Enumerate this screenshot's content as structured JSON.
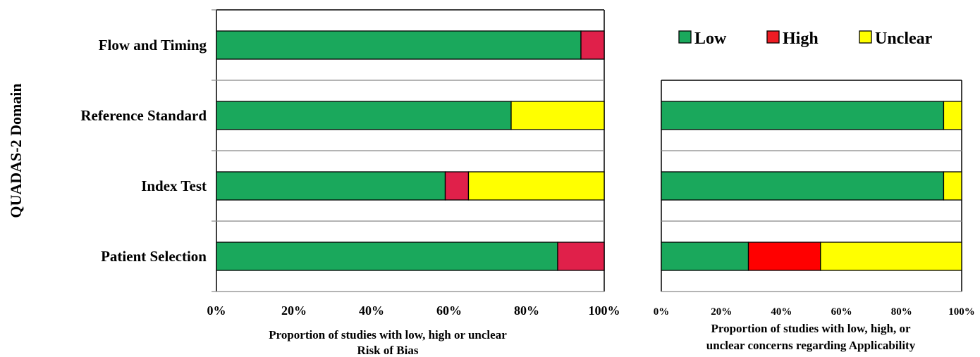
{
  "chart_data": [
    {
      "type": "bar",
      "stacked": true,
      "orientation": "horizontal",
      "categories": [
        "Patient Selection",
        "Index Test",
        "Reference Standard",
        "Flow and Timing"
      ],
      "series": [
        {
          "name": "Low",
          "values": [
            88,
            59,
            76,
            94
          ]
        },
        {
          "name": "High",
          "values": [
            12,
            6,
            0,
            6
          ]
        },
        {
          "name": "Unclear",
          "values": [
            0,
            35,
            24,
            0
          ]
        }
      ],
      "ylabel": "QUADAS-2 Domain",
      "xlabel_lines": [
        "Proportion of studies with low, high or unclear",
        "Risk of Bias"
      ],
      "xlim": [
        0,
        100
      ],
      "xticks": [
        "0%",
        "20%",
        "40%",
        "60%",
        "80%",
        "100%"
      ],
      "grid": "horizontal"
    },
    {
      "type": "bar",
      "stacked": true,
      "orientation": "horizontal",
      "categories": [
        "Patient Selection",
        "Index Test",
        "Reference Standard"
      ],
      "series": [
        {
          "name": "Low",
          "values": [
            29,
            94,
            94
          ]
        },
        {
          "name": "High",
          "values": [
            24,
            0,
            0
          ]
        },
        {
          "name": "Unclear",
          "values": [
            47,
            6,
            6
          ]
        }
      ],
      "xlabel_lines": [
        "Proportion of studies with low, high, or",
        "unclear concerns  regarding Applicability"
      ],
      "xlim": [
        0,
        100
      ],
      "xticks": [
        "0%",
        "20%",
        "40%",
        "60%",
        "80%",
        "100%"
      ],
      "grid": "horizontal"
    }
  ],
  "legend": {
    "placement": "top-right",
    "items": [
      {
        "label": "Low",
        "color": "#1aa85c"
      },
      {
        "label": "High",
        "color": "#ee1c24"
      },
      {
        "label": "Unclear",
        "color": "#ffff00"
      }
    ]
  },
  "colors": {
    "left_high": "#e0204a",
    "right_high": "#ff0000"
  }
}
